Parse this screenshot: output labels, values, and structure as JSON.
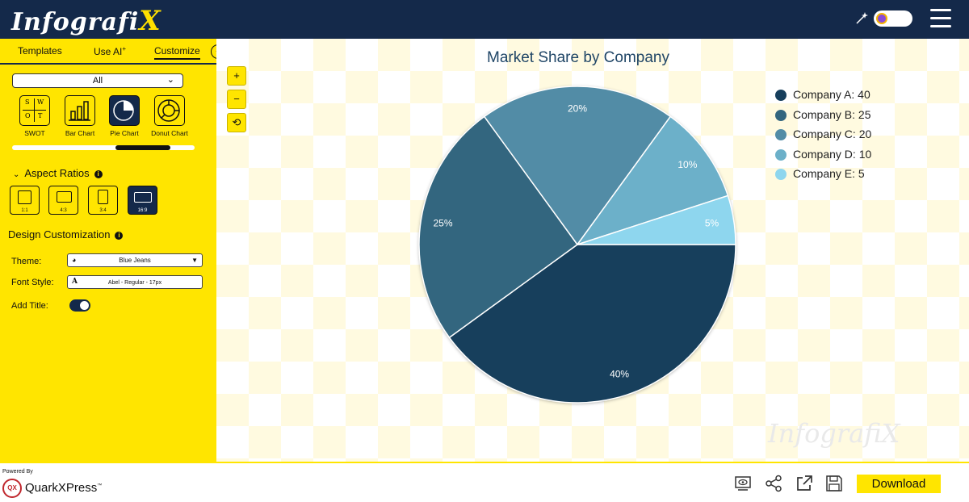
{
  "app": {
    "logo_text": "Infografi",
    "logo_x": "X"
  },
  "sidebar": {
    "tabs": [
      {
        "label": "Templates"
      },
      {
        "label": "Use AI"
      },
      {
        "label": "Customize"
      }
    ],
    "ai_sup": "+",
    "collapse_icon": "double-chevron-left-icon",
    "filter_value": "All",
    "chart_types": [
      {
        "label": "SWOT",
        "letters": [
          "S",
          "W",
          "O",
          "T"
        ]
      },
      {
        "label": "Bar Chart"
      },
      {
        "label": "Pie Chart"
      },
      {
        "label": "Donut Chart"
      }
    ],
    "selected_chart_type": "Pie Chart",
    "chart_types_scroll_fraction": 0.56,
    "aspect_title": "Aspect Ratios",
    "info_glyph": "i",
    "ratios": [
      {
        "label": "1:1"
      },
      {
        "label": "4:3"
      },
      {
        "label": "3:4"
      },
      {
        "label": "16:9"
      }
    ],
    "selected_ratio": "16:9",
    "design_title": "Design Customization",
    "theme_label": "Theme:",
    "theme_value": "Blue Jeans",
    "font_label": "Font Style:",
    "font_value": "Abel - Regular - 17px",
    "font_glyph": "A",
    "add_title_label": "Add Title:",
    "add_title_on": true
  },
  "canvas": {
    "zoom_in": "+",
    "zoom_out": "−",
    "reset": "⟲",
    "watermark": "InfografiX"
  },
  "chart_data": {
    "type": "pie",
    "title": "Market Share by Company",
    "categories": [
      "Company A",
      "Company B",
      "Company C",
      "Company D",
      "Company E"
    ],
    "values": [
      40,
      25,
      20,
      10,
      5
    ],
    "slice_labels": [
      "40%",
      "25%",
      "20%",
      "10%",
      "5%"
    ],
    "legend_labels": [
      "Company A: 40",
      "Company B: 25",
      "Company C: 20",
      "Company D: 10",
      "Company E: 5"
    ],
    "colors": [
      "#173f5c",
      "#33667f",
      "#528ca6",
      "#6cb0c9",
      "#8ed6ee"
    ],
    "legend_placement": "top-right"
  },
  "footer": {
    "powered_by": "Powered By",
    "qx_badge": "QX",
    "qx_text": "QuarkXPress",
    "qx_tm": "™",
    "icons": [
      "preview-icon",
      "share-icon",
      "export-icon",
      "save-icon"
    ],
    "download_label": "Download"
  }
}
